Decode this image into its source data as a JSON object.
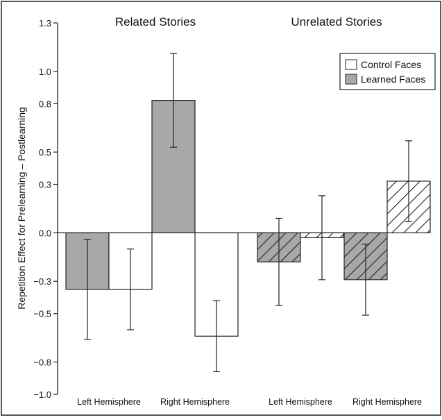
{
  "chart_data": {
    "type": "bar",
    "ylabel": "Repetition Effect for Prelearning – Postlearning",
    "ylim": [
      -1.0,
      1.3
    ],
    "yticks": [
      {
        "value": 1.3,
        "label": "1.3"
      },
      {
        "value": 1.0,
        "label": "1.0"
      },
      {
        "value": 0.8,
        "label": "0.8"
      },
      {
        "value": 0.5,
        "label": "0.5"
      },
      {
        "value": 0.3,
        "label": "0.3"
      },
      {
        "value": 0.0,
        "label": "0.0"
      },
      {
        "value": -0.3,
        "label": "−0.3"
      },
      {
        "value": -0.5,
        "label": "−0.5"
      },
      {
        "value": -0.8,
        "label": "−0.8"
      },
      {
        "value": -1.0,
        "label": "−1.0"
      }
    ],
    "panels": [
      {
        "title": "Related Stories",
        "pattern": "solid"
      },
      {
        "title": "Unrelated Stories",
        "pattern": "hatched"
      }
    ],
    "categories": [
      "Left Hemisphere",
      "Right Hemisphere",
      "Left Hemisphere",
      "Right Hemisphere"
    ],
    "legend": {
      "position": "top-right",
      "entries": [
        {
          "label": "Control Faces",
          "color": "#ffffff"
        },
        {
          "label": "Learned Faces",
          "color": "#a8a8a8"
        }
      ]
    },
    "series": [
      {
        "name": "Learned Faces",
        "color": "#a8a8a8",
        "values": [
          -0.35,
          0.82,
          -0.18,
          -0.29
        ],
        "error": [
          0.31,
          0.29,
          0.27,
          0.22
        ]
      },
      {
        "name": "Control Faces",
        "color": "#ffffff",
        "values": [
          -0.35,
          -0.64,
          -0.03,
          0.32
        ],
        "error": [
          0.25,
          0.22,
          0.26,
          0.25
        ]
      }
    ]
  }
}
